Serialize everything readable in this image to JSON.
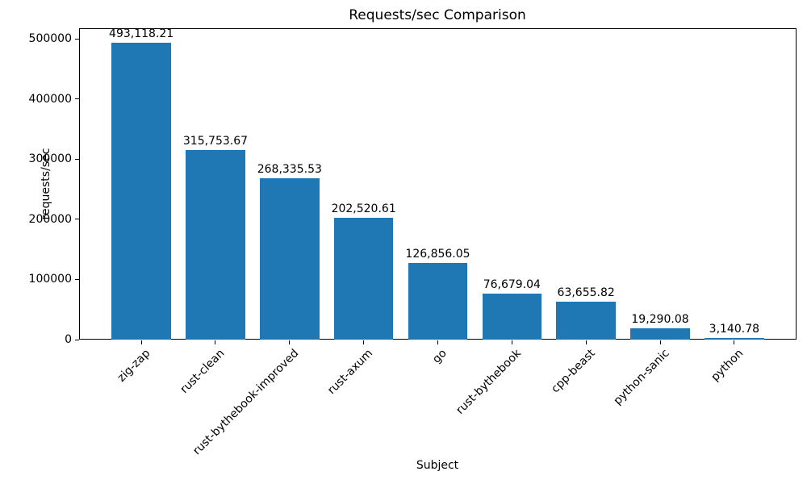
{
  "chart_data": {
    "type": "bar",
    "title": "Requests/sec Comparison",
    "xlabel": "Subject",
    "ylabel": "requests/sec",
    "categories": [
      "zig-zap",
      "rust-clean",
      "rust-bythebook-improved",
      "rust-axum",
      "go",
      "rust-bythebook",
      "cpp-beast",
      "python-sanic",
      "python"
    ],
    "values": [
      493118.21,
      315753.67,
      268335.53,
      202520.61,
      126856.05,
      76679.04,
      63655.82,
      19290.08,
      3140.78
    ],
    "value_labels": [
      "493,118.21",
      "315,753.67",
      "268,335.53",
      "202,520.61",
      "126,856.05",
      "76,679.04",
      "63,655.82",
      "19,290.08",
      "3,140.78"
    ],
    "yticks": [
      0,
      100000,
      200000,
      300000,
      400000,
      500000
    ],
    "ytick_labels": [
      "0",
      "100000",
      "200000",
      "300000",
      "400000",
      "500000"
    ],
    "ylim": [
      0,
      517774
    ],
    "bar_color": "#1f77b4",
    "bar_width_fraction": 0.8,
    "grid": false,
    "legend": null,
    "x_tick_rotation_deg": 45
  }
}
